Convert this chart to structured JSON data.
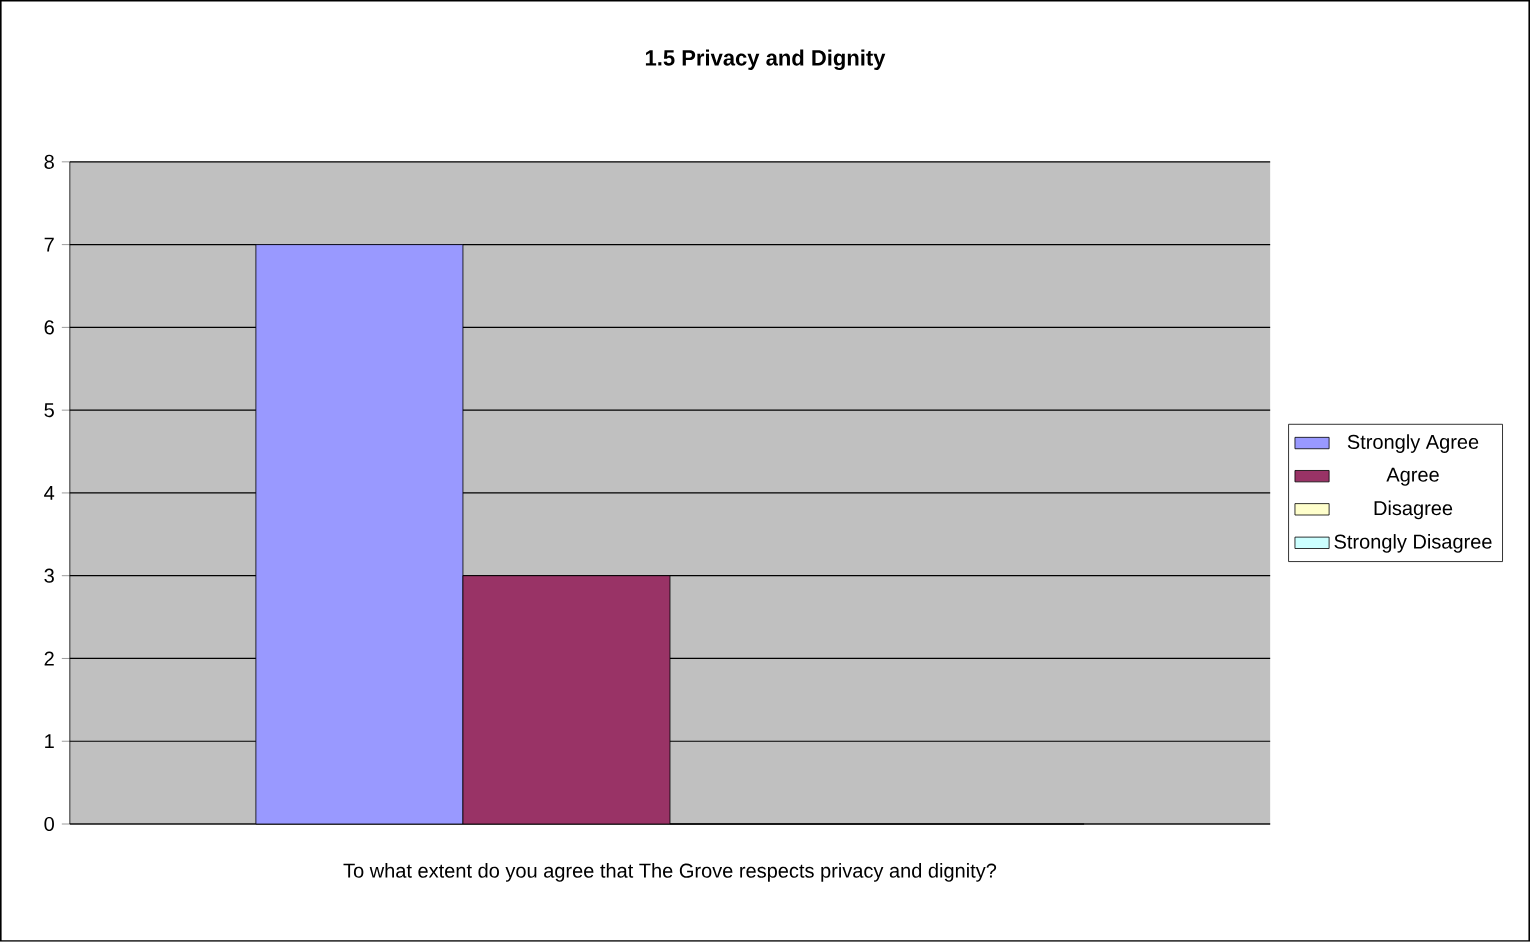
{
  "chart_data": {
    "type": "bar",
    "title": "1.5 Privacy and Dignity",
    "categories": [
      "To what extent do you agree that The Grove respects privacy and dignity?"
    ],
    "series": [
      {
        "name": "Strongly Agree",
        "color": "#9999ff",
        "values": [
          7
        ]
      },
      {
        "name": "Agree",
        "color": "#993366",
        "values": [
          3
        ]
      },
      {
        "name": "Disagree",
        "color": "#ffffcc",
        "values": [
          0
        ]
      },
      {
        "name": "Strongly Disagree",
        "color": "#ccffff",
        "values": [
          0
        ]
      }
    ],
    "ylim": [
      0,
      8
    ],
    "yticks": [
      0,
      1,
      2,
      3,
      4,
      5,
      6,
      7,
      8
    ],
    "grid": "y",
    "legend": "right"
  }
}
